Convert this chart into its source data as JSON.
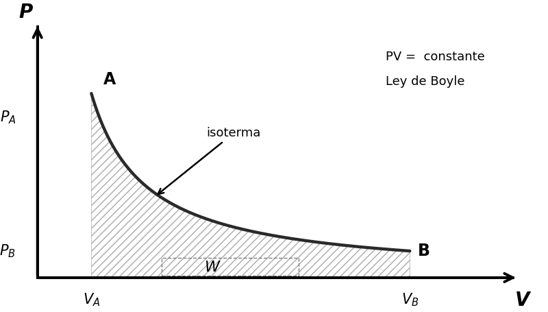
{
  "background_color": "#ffffff",
  "curve_color": "#2a2a2a",
  "curve_linewidth": 3.2,
  "hatch_color": "#aaaaaa",
  "hatch_pattern": "///",
  "VA": 0.55,
  "VB": 3.8,
  "C": 2.2,
  "xlabel": "V",
  "ylabel": "P",
  "label_A": "A",
  "label_B": "B",
  "label_PA": "$P_A$",
  "label_PB": "$P_B$",
  "label_VA": "$V_A$",
  "label_VB": "$V_B$",
  "label_W": "W",
  "label_isoterma": "isoterma",
  "label_pv": "PV =  constante",
  "label_ley": "Ley de Boyle",
  "figsize": [
    8.0,
    4.55
  ],
  "dpi": 100,
  "xlim": [
    -0.15,
    5.2
  ],
  "ylim": [
    -0.45,
    5.8
  ]
}
